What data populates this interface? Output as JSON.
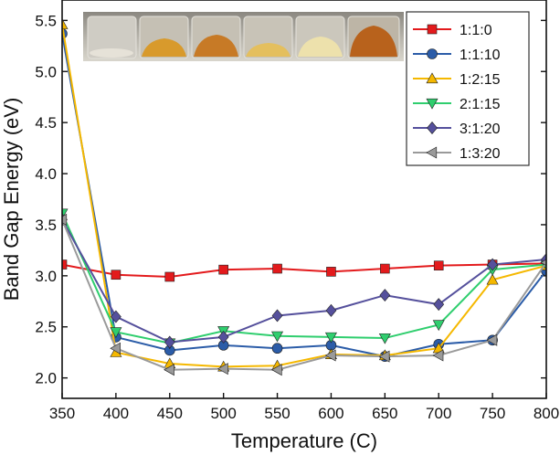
{
  "chart_data": {
    "type": "line",
    "title": "",
    "xlabel": "Temperature (C)",
    "ylabel": "Band Gap Energy (eV)",
    "xlim": [
      350,
      800
    ],
    "ylim": [
      1.8,
      5.7
    ],
    "x": [
      350,
      400,
      450,
      500,
      550,
      600,
      650,
      700,
      750,
      800
    ],
    "x_ticks": [
      350,
      400,
      450,
      500,
      550,
      600,
      650,
      700,
      750,
      800
    ],
    "y_ticks": [
      2.0,
      2.5,
      3.0,
      3.5,
      4.0,
      4.5,
      5.0,
      5.5
    ],
    "x_tick_labels": [
      "350",
      "400",
      "450",
      "500",
      "550",
      "600",
      "650",
      "700",
      "750",
      "800"
    ],
    "y_tick_labels": [
      "2.0",
      "2.5",
      "3.0",
      "3.5",
      "4.0",
      "4.5",
      "5.0",
      "5.5"
    ],
    "legend_position": "top-right",
    "inset": "photo of six sample vials with powders from white to orange-brown",
    "series": [
      {
        "name": "1:1:0",
        "color": "#e31a1c",
        "marker": "square",
        "values": [
          3.11,
          3.01,
          2.99,
          3.06,
          3.07,
          3.04,
          3.07,
          3.1,
          3.11,
          3.12
        ]
      },
      {
        "name": "1:1:10",
        "color": "#2b5ca8",
        "marker": "circle",
        "values": [
          5.37,
          2.4,
          2.27,
          2.32,
          2.29,
          2.32,
          2.21,
          2.33,
          2.37,
          3.05
        ]
      },
      {
        "name": "1:2:15",
        "color": "#f5b800",
        "marker": "triangle-up",
        "values": [
          5.46,
          2.25,
          2.14,
          2.11,
          2.12,
          2.23,
          2.22,
          2.29,
          2.96,
          3.1
        ]
      },
      {
        "name": "2:1:15",
        "color": "#2fce6e",
        "marker": "triangle-down",
        "values": [
          3.61,
          2.45,
          2.34,
          2.46,
          2.41,
          2.4,
          2.39,
          2.52,
          3.06,
          3.11
        ]
      },
      {
        "name": "3:1:20",
        "color": "#55509c",
        "marker": "diamond",
        "values": [
          3.55,
          2.6,
          2.35,
          2.4,
          2.61,
          2.66,
          2.81,
          2.72,
          3.11,
          3.16
        ]
      },
      {
        "name": "1:3:20",
        "color": "#9a9a9a",
        "marker": "triangle-left",
        "values": [
          3.55,
          2.29,
          2.08,
          2.09,
          2.08,
          2.22,
          2.21,
          2.22,
          2.37,
          3.13
        ]
      }
    ]
  }
}
